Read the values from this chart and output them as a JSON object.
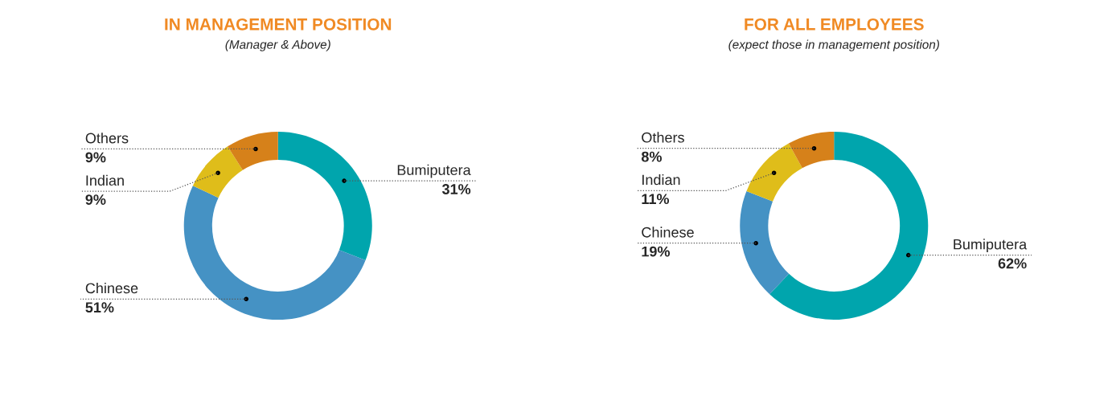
{
  "chart_data": [
    {
      "type": "donut",
      "title": "IN MANAGEMENT POSITION",
      "subtitle": "(Manager & Above)",
      "categories": [
        "Bumiputera",
        "Chinese",
        "Indian",
        "Others"
      ],
      "values": [
        31,
        51,
        9,
        9
      ],
      "value_labels": [
        "31%",
        "51%",
        "9%",
        "9%"
      ],
      "colors": [
        "#00a5ad",
        "#4592c4",
        "#dfbd1a",
        "#d6811a"
      ]
    },
    {
      "type": "donut",
      "title": "FOR ALL EMPLOYEES",
      "subtitle": "(expect those in management position)",
      "categories": [
        "Bumiputera",
        "Chinese",
        "Indian",
        "Others"
      ],
      "values": [
        62,
        19,
        11,
        8
      ],
      "value_labels": [
        "62%",
        "19%",
        "11%",
        "8%"
      ],
      "colors": [
        "#00a5ad",
        "#4592c4",
        "#dfbd1a",
        "#d6811a"
      ]
    }
  ]
}
